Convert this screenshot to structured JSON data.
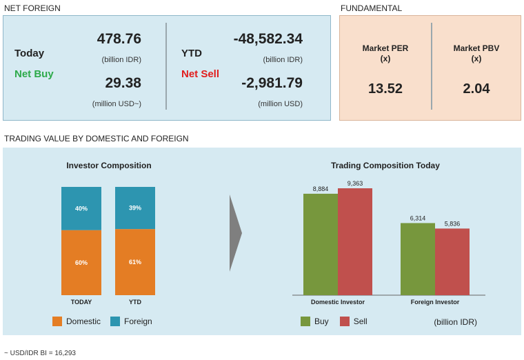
{
  "net_foreign": {
    "title": "NET FOREIGN",
    "today": {
      "label": "Today",
      "status": "Net Buy",
      "value_idr": "478.76",
      "unit_idr": "(billion IDR)",
      "value_usd": "29.38",
      "unit_usd": "(million USD~)"
    },
    "ytd": {
      "label": "YTD",
      "status": "Net Sell",
      "value_idr": "-48,582.34",
      "unit_idr": "(billion IDR)",
      "value_usd": "-2,981.79",
      "unit_usd": "(million USD)"
    }
  },
  "fundamental": {
    "title": "FUNDAMENTAL",
    "per": {
      "label_line1": "Market PER",
      "label_line2": "(x)",
      "value": "13.52"
    },
    "pbv": {
      "label_line1": "Market PBV",
      "label_line2": "(x)",
      "value": "2.04"
    }
  },
  "trading_value": {
    "title": "TRADING VALUE BY DOMESTIC AND FOREIGN",
    "legend_left": {
      "domestic": "Domestic",
      "foreign": "Foreign"
    },
    "legend_right": {
      "buy": "Buy",
      "sell": "Sell",
      "unit": "(billion IDR)"
    }
  },
  "colors": {
    "domestic": "#e47d24",
    "foreign": "#2d95b0",
    "buy": "#77973d",
    "sell": "#c0504d",
    "arrow": "#7f7f7f"
  },
  "chart_data": [
    {
      "type": "bar",
      "stacked": true,
      "percent": true,
      "title": "Investor Composition",
      "categories": [
        "TODAY",
        "YTD"
      ],
      "series": [
        {
          "name": "Domestic",
          "values": [
            60,
            61
          ],
          "labels": [
            "60%",
            "61%"
          ]
        },
        {
          "name": "Foreign",
          "values": [
            40,
            39
          ],
          "labels": [
            "40%",
            "39%"
          ]
        }
      ],
      "ylim": [
        0,
        100
      ],
      "legend": "bottom"
    },
    {
      "type": "bar",
      "title": "Trading Composition Today",
      "categories": [
        "Domestic Investor",
        "Foreign Investor"
      ],
      "series": [
        {
          "name": "Buy",
          "values": [
            8884,
            6314
          ],
          "labels": [
            "8,884",
            "6,314"
          ]
        },
        {
          "name": "Sell",
          "values": [
            9363,
            5836
          ],
          "labels": [
            "9,363",
            "5,836"
          ]
        }
      ],
      "ylim": [
        0,
        9363
      ],
      "legend": "bottom"
    }
  ],
  "footnote": "~ USD/IDR BI = 16,293"
}
